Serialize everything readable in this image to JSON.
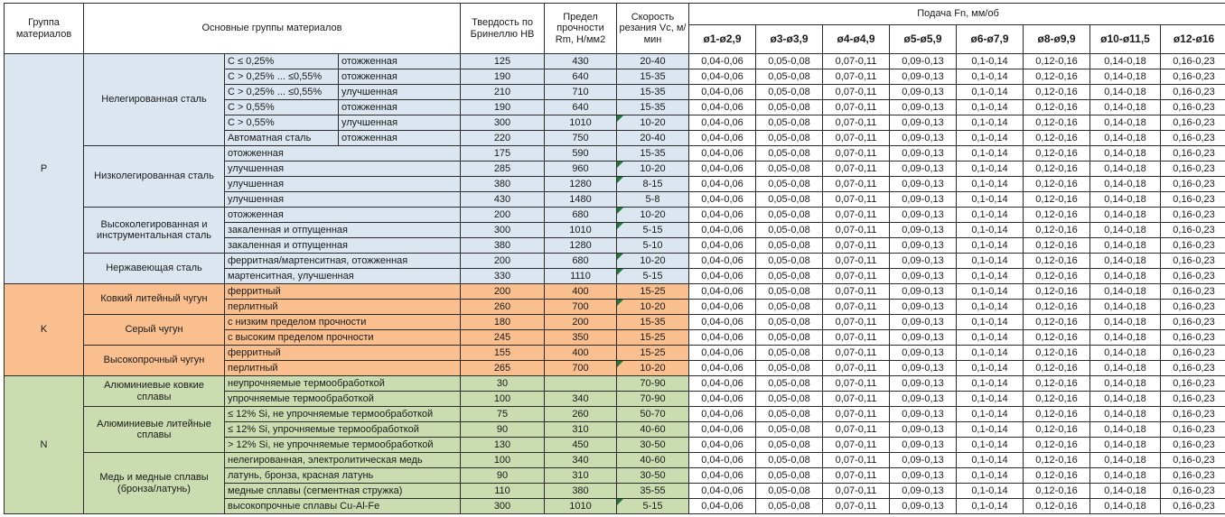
{
  "header": {
    "col_group": "Группа материалов",
    "col_main": "Основные группы материалов",
    "col_hb": "Твердость по Бринеллю HB",
    "col_rm": "Предел прочности Rm, Н/мм2",
    "col_vc": "Скорость резания Vc, м/мин",
    "col_feed": "Подача Fn, мм/об",
    "diameters": [
      "ø1-ø2,9",
      "ø3-ø3,9",
      "ø4-ø4,9",
      "ø5-ø5,9",
      "ø6-ø7,9",
      "ø8-ø9,9",
      "ø10-ø11,5",
      "ø12-ø16"
    ]
  },
  "colors": {
    "p_group": "#dce6f1",
    "k_group": "#fabf8f",
    "n_group": "#cbdcb0",
    "note_triangle": "#217a3c",
    "border": "#2b2b2b"
  },
  "feed_values": [
    "0,04-0,06",
    "0,05-0,08",
    "0,07-0,11",
    "0,09-0,13",
    "0,1-0,14",
    "0,12-0,16",
    "0,14-0,18",
    "0,16-0,23"
  ],
  "groups": [
    {
      "code": "P",
      "color": "#dce6f1",
      "subgroups": [
        {
          "name": "Нелегированная сталь",
          "rows": [
            {
              "detail": "C ≤ 0,25%",
              "state": "отожженная",
              "hb": "125",
              "rm": "430",
              "vc": "20-40",
              "note": false
            },
            {
              "detail": "C > 0,25% ... ≤0,55%",
              "state": "отожженная",
              "hb": "190",
              "rm": "640",
              "vc": "15-35",
              "note": false
            },
            {
              "detail": "C > 0,25% ... ≤0,55%",
              "state": "улучшенная",
              "hb": "210",
              "rm": "710",
              "vc": "15-35",
              "note": false
            },
            {
              "detail": "C > 0,55%",
              "state": "отожженная",
              "hb": "190",
              "rm": "640",
              "vc": "15-35",
              "note": false
            },
            {
              "detail": "C > 0,55%",
              "state": "улучшенная",
              "hb": "300",
              "rm": "1010",
              "vc": "10-20",
              "note": true
            },
            {
              "detail": "Автоматная сталь",
              "state": "отожженная",
              "hb": "220",
              "rm": "750",
              "vc": "20-40",
              "note": false
            }
          ]
        },
        {
          "name": "Низколегированная сталь",
          "rows": [
            {
              "detail": "отожженная",
              "state": null,
              "hb": "175",
              "rm": "590",
              "vc": "15-35",
              "note": false
            },
            {
              "detail": "улучшенная",
              "state": null,
              "hb": "285",
              "rm": "960",
              "vc": "10-20",
              "note": true
            },
            {
              "detail": "улучшенная",
              "state": null,
              "hb": "380",
              "rm": "1280",
              "vc": "8-15",
              "note": true
            },
            {
              "detail": "улучшенная",
              "state": null,
              "hb": "430",
              "rm": "1480",
              "vc": "5-8",
              "note": false
            }
          ]
        },
        {
          "name": "Высоколегированная и инструментальная сталь",
          "rows": [
            {
              "detail": "отожженная",
              "state": null,
              "hb": "200",
              "rm": "680",
              "vc": "10-20",
              "note": true
            },
            {
              "detail": "закаленная и отпущенная",
              "state": null,
              "hb": "300",
              "rm": "1010",
              "vc": "5-15",
              "note": true
            },
            {
              "detail": "закаленная и отпущенная",
              "state": null,
              "hb": "380",
              "rm": "1280",
              "vc": "5-10",
              "note": false
            }
          ]
        },
        {
          "name": "Нержавеющая сталь",
          "rows": [
            {
              "detail": "ферритная/мартенситная, отожженная",
              "state": null,
              "hb": "200",
              "rm": "680",
              "vc": "10-20",
              "note": true
            },
            {
              "detail": "мартенситная, улучшенная",
              "state": null,
              "hb": "330",
              "rm": "1110",
              "vc": "5-15",
              "note": true
            }
          ]
        }
      ]
    },
    {
      "code": "K",
      "color": "#fabf8f",
      "subgroups": [
        {
          "name": "Ковкий литейный чугун",
          "rows": [
            {
              "detail": "ферритный",
              "state": null,
              "hb": "200",
              "rm": "400",
              "vc": "15-25",
              "note": false
            },
            {
              "detail": "перлитный",
              "state": null,
              "hb": "260",
              "rm": "700",
              "vc": "10-20",
              "note": true
            }
          ]
        },
        {
          "name": "Серый чугун",
          "rows": [
            {
              "detail": "с низким пределом прочности",
              "state": null,
              "hb": "180",
              "rm": "200",
              "vc": "15-35",
              "note": false
            },
            {
              "detail": "с высоким пределом прочности",
              "state": null,
              "hb": "245",
              "rm": "350",
              "vc": "15-25",
              "note": false
            }
          ]
        },
        {
          "name": "Высокопрочный чугун",
          "rows": [
            {
              "detail": "ферритный",
              "state": null,
              "hb": "155",
              "rm": "400",
              "vc": "15-25",
              "note": false
            },
            {
              "detail": "перлитный",
              "state": null,
              "hb": "265",
              "rm": "700",
              "vc": "10-20",
              "note": true
            }
          ]
        }
      ]
    },
    {
      "code": "N",
      "color": "#cbdcb0",
      "subgroups": [
        {
          "name": "Алюминиевые ковкие сплавы",
          "rows": [
            {
              "detail": "неупрочняемые термообработкой",
              "state": null,
              "hb": "30",
              "rm": "",
              "vc": "70-90",
              "note": false
            },
            {
              "detail": "упрочняемые термообработкой",
              "state": null,
              "hb": "100",
              "rm": "340",
              "vc": "70-90",
              "note": false
            }
          ]
        },
        {
          "name": "Алюминиевые литейные сплавы",
          "rows": [
            {
              "detail": "≤ 12% Si, не упрочняемые термообработкой",
              "state": null,
              "hb": "75",
              "rm": "260",
              "vc": "50-70",
              "note": false
            },
            {
              "detail": "≤ 12% Si, упрочняемые термообработкой",
              "state": null,
              "hb": "90",
              "rm": "310",
              "vc": "40-60",
              "note": false
            },
            {
              "detail": "> 12% Si, не упрочняемые термообработкой",
              "state": null,
              "hb": "130",
              "rm": "450",
              "vc": "30-50",
              "note": false
            }
          ]
        },
        {
          "name": "Медь и медные сплавы (бронза/латунь)",
          "rows": [
            {
              "detail": "нелегированная, электролитическая медь",
              "state": null,
              "hb": "100",
              "rm": "340",
              "vc": "40-60",
              "note": false
            },
            {
              "detail": "латунь, бронза, красная латунь",
              "state": null,
              "hb": "90",
              "rm": "310",
              "vc": "30-50",
              "note": false
            },
            {
              "detail": "медные сплавы (сегментная стружка)",
              "state": null,
              "hb": "110",
              "rm": "380",
              "vc": "35-55",
              "note": false
            },
            {
              "detail": "высокопрочные сплавы Cu-Al-Fe",
              "state": null,
              "hb": "300",
              "rm": "1010",
              "vc": "5-15",
              "note": true
            }
          ]
        }
      ]
    }
  ]
}
